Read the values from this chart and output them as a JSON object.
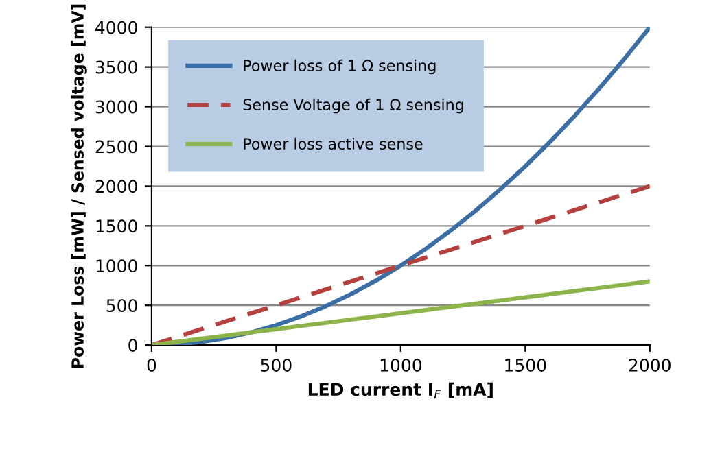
{
  "chart_data": {
    "type": "line",
    "xlabel": "LED current I$_{F}$ [mA]",
    "ylabel": "Power Loss [mW] / Sensed voltage [mV]",
    "x": [
      0,
      100,
      200,
      300,
      400,
      500,
      600,
      700,
      800,
      900,
      1000,
      1100,
      1200,
      1300,
      1400,
      1500,
      1600,
      1700,
      1800,
      1900,
      2000
    ],
    "series": [
      {
        "name": "Power loss of 1 Ω sensing",
        "color": "#3a6ea5",
        "line_style": "solid",
        "values": [
          0,
          10,
          40,
          90,
          160,
          250,
          360,
          490,
          640,
          810,
          1000,
          1210,
          1440,
          1690,
          1960,
          2250,
          2560,
          2890,
          3240,
          3610,
          4000
        ]
      },
      {
        "name": "Sense Voltage of 1 Ω sensing",
        "color": "#b5413e",
        "line_style": "dashed",
        "values": [
          0,
          100,
          200,
          300,
          400,
          500,
          600,
          700,
          800,
          900,
          1000,
          1100,
          1200,
          1300,
          1400,
          1500,
          1600,
          1700,
          1800,
          1900,
          2000
        ]
      },
      {
        "name": "Power loss active sense",
        "color": "#8cb44a",
        "line_style": "solid",
        "values": [
          0,
          40,
          80,
          120,
          160,
          200,
          240,
          280,
          320,
          360,
          400,
          440,
          480,
          520,
          560,
          600,
          640,
          680,
          720,
          760,
          800
        ]
      }
    ],
    "xlim": [
      0,
      2000
    ],
    "xticks": [
      0,
      500,
      1000,
      1500,
      2000
    ],
    "ylim": [
      0,
      4000
    ],
    "yticks": [
      0,
      500,
      1000,
      1500,
      2000,
      2500,
      3000,
      3500,
      4000
    ],
    "grid": "y",
    "legend": "top left",
    "marker": "none"
  }
}
